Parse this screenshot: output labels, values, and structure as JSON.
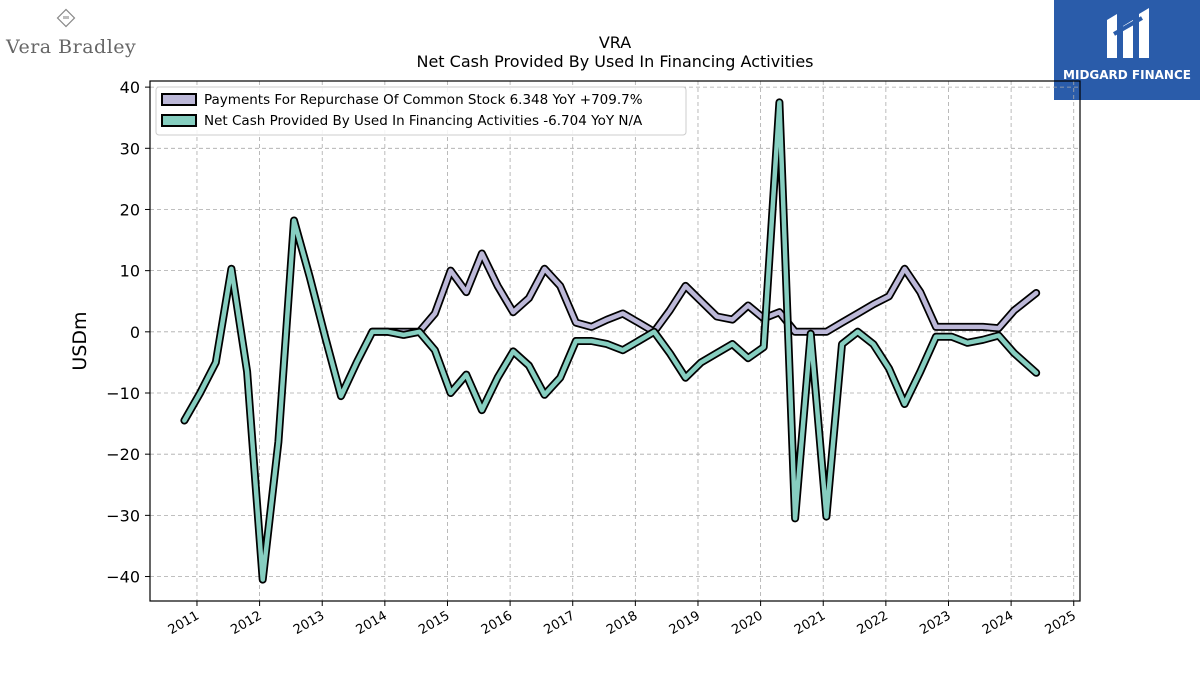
{
  "brand": {
    "left_logo_text": "Vera Bradley",
    "right_logo_text": "MIDGARD FINANCE"
  },
  "chart_data": {
    "type": "line",
    "title": "VRA",
    "subtitle": "Net Cash Provided By Used In Financing Activities",
    "ylabel": "USDm",
    "xlabel": "",
    "ylim": [
      -44,
      41
    ],
    "xlim": [
      2010.25,
      2025.1
    ],
    "yticks": [
      -40,
      -30,
      -20,
      -10,
      0,
      10,
      20,
      30,
      40
    ],
    "yticklabels": [
      "−40",
      "−30",
      "−20",
      "−10",
      "0",
      "10",
      "20",
      "30",
      "40"
    ],
    "xticks": [
      2011,
      2012,
      2013,
      2014,
      2015,
      2016,
      2017,
      2018,
      2019,
      2020,
      2021,
      2022,
      2023,
      2024,
      2025
    ],
    "xticklabels": [
      "2011",
      "2012",
      "2013",
      "2014",
      "2015",
      "2016",
      "2017",
      "2018",
      "2019",
      "2020",
      "2021",
      "2022",
      "2023",
      "2024",
      "2025"
    ],
    "grid": true,
    "legend_position": "top-left",
    "series": [
      {
        "name": "Payments For Repurchase Of Common Stock",
        "legend_label": "Payments For Repurchase Of Common Stock  6.348 YoY +709.7%",
        "color": "#bcb8d8",
        "x": [
          2013.8,
          2014.05,
          2014.3,
          2014.55,
          2014.8,
          2015.05,
          2015.3,
          2015.55,
          2015.8,
          2016.05,
          2016.3,
          2016.55,
          2016.8,
          2017.05,
          2017.3,
          2017.55,
          2017.8,
          2018.05,
          2018.3,
          2018.55,
          2018.8,
          2019.05,
          2019.3,
          2019.55,
          2019.8,
          2020.05,
          2020.3,
          2020.55,
          2020.8,
          2021.05,
          2021.3,
          2021.55,
          2021.8,
          2022.05,
          2022.3,
          2022.55,
          2022.8,
          2023.05,
          2023.3,
          2023.55,
          2023.8,
          2024.05,
          2024.4
        ],
        "values": [
          0,
          0,
          0,
          0,
          3,
          10,
          6.5,
          12.8,
          7.5,
          3.2,
          5.5,
          10.3,
          7.5,
          1.5,
          0.8,
          2,
          3,
          1.5,
          0,
          3.5,
          7.5,
          5,
          2.5,
          2,
          4.3,
          2.2,
          3.2,
          0,
          0,
          0,
          1.5,
          3,
          4.5,
          5.8,
          10.3,
          6.5,
          0.8,
          0.8,
          0.8,
          0.8,
          0.6,
          3.5,
          6.348
        ]
      },
      {
        "name": "Net Cash Provided By Used In Financing Activities",
        "legend_label": "Net Cash Provided By Used In Financing Activities  -6.704 YoY N/A",
        "color": "#86cec0",
        "x": [
          2010.8,
          2011.05,
          2011.3,
          2011.55,
          2011.8,
          2012.05,
          2012.3,
          2012.55,
          2012.8,
          2013.05,
          2013.3,
          2013.55,
          2013.8,
          2014.05,
          2014.3,
          2014.55,
          2014.8,
          2015.05,
          2015.3,
          2015.55,
          2015.8,
          2016.05,
          2016.3,
          2016.55,
          2016.8,
          2017.05,
          2017.3,
          2017.55,
          2017.8,
          2018.05,
          2018.3,
          2018.55,
          2018.8,
          2019.05,
          2019.3,
          2019.55,
          2019.8,
          2020.05,
          2020.3,
          2020.55,
          2020.8,
          2021.05,
          2021.3,
          2021.55,
          2021.8,
          2022.05,
          2022.3,
          2022.55,
          2022.8,
          2023.05,
          2023.3,
          2023.55,
          2023.8,
          2024.05,
          2024.4
        ],
        "values": [
          -14.5,
          -10,
          -5,
          10.3,
          -6.5,
          -40.5,
          -18,
          18.2,
          9,
          -1,
          -10.5,
          -5,
          0,
          0,
          -0.5,
          0,
          -3,
          -10,
          -7,
          -12.8,
          -7.5,
          -3.2,
          -5.5,
          -10.3,
          -7.5,
          -1.5,
          -1.5,
          -2,
          -3,
          -1.5,
          0,
          -3.5,
          -7.5,
          -5,
          -3.5,
          -2,
          -4.3,
          -2.5,
          37.5,
          -30.5,
          -0.3,
          -30.2,
          -2,
          0,
          -2,
          -6,
          -11.8,
          -6.5,
          -0.8,
          -0.8,
          -1.8,
          -1.3,
          -0.6,
          -3.5,
          -6.704
        ]
      }
    ]
  }
}
